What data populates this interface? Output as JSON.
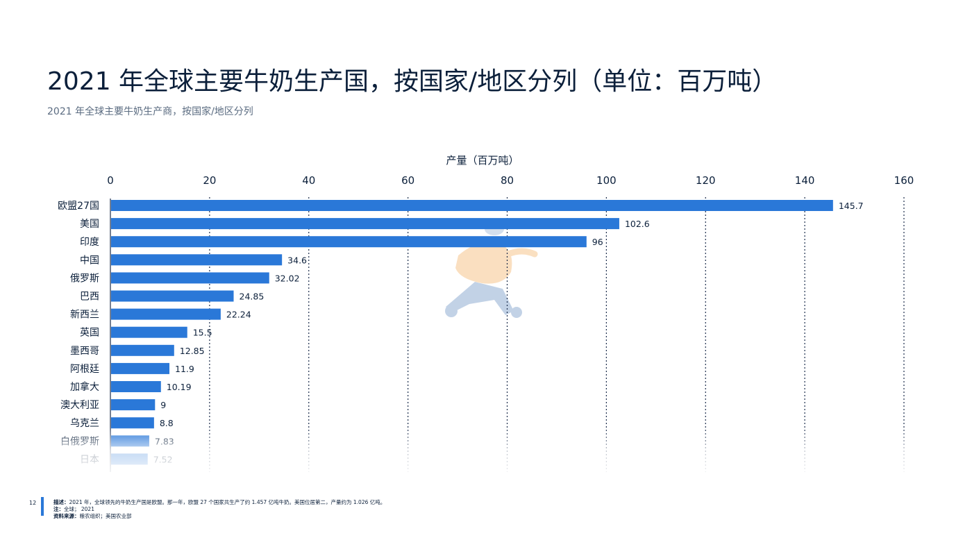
{
  "title": "2021 年全球主要牛奶生产国，按国家/地区分列（单位：百万吨）",
  "subtitle": "2021 年全球主要牛奶生产商，按国家/地区分列",
  "page_number": "12",
  "footer": {
    "description_label": "描述：",
    "description": "2021 年，全球领先的牛奶生产国是欧盟。那一年，欧盟 27 个国家共生产了约 1.457 亿吨牛奶。美国位居第二，产量约为 1.026 亿吨。",
    "note_label": "注：",
    "note": "全球； 2021",
    "source_label": "资料来源：",
    "source": "粮农组织；美国农业部"
  },
  "colors": {
    "bar": "#2a78d8",
    "text": "#0b1f3a",
    "grid": "#1a2b4a"
  },
  "chart_data": {
    "type": "bar",
    "orientation": "horizontal",
    "xlabel": "产量（百万吨）",
    "xlim": [
      0,
      160
    ],
    "xticks": [
      0,
      20,
      40,
      60,
      80,
      100,
      120,
      140,
      160
    ],
    "grid": "vertical dotted",
    "categories": [
      "欧盟27国",
      "美国",
      "印度",
      "中国",
      "俄罗斯",
      "巴西",
      "新西兰",
      "英国",
      "墨西哥",
      "阿根廷",
      "加拿大",
      "澳大利亚",
      "乌克兰",
      "白俄罗斯",
      "日本"
    ],
    "values": [
      145.7,
      102.6,
      96,
      34.6,
      32.02,
      24.85,
      22.24,
      15.5,
      12.85,
      11.9,
      10.19,
      9,
      8.8,
      7.83,
      7.52
    ],
    "value_labels": [
      "145.7",
      "102.6",
      "96",
      "34.6",
      "32.02",
      "24.85",
      "22.24",
      "15.5",
      "12.85",
      "11.9",
      "10.19",
      "9",
      "8.8",
      "7.83",
      "7.52"
    ]
  }
}
